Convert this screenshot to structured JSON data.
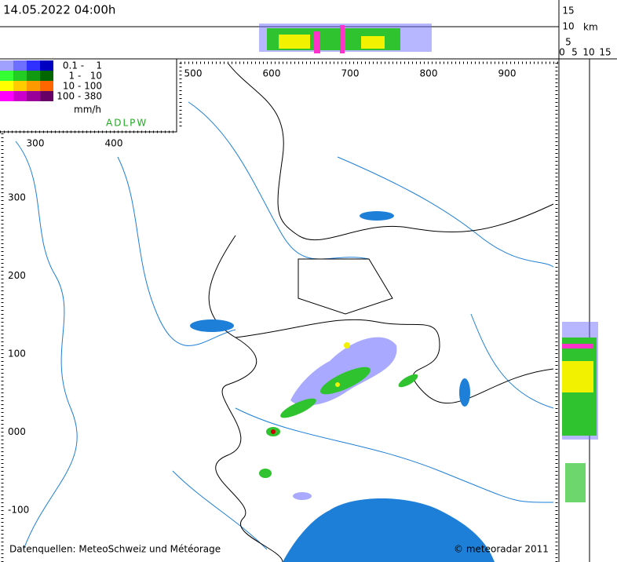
{
  "header": {
    "timestamp": "14.05.2022 04:00h",
    "height_ticks": [
      "15",
      "10",
      "5"
    ],
    "height_unit": "km",
    "side_ticks": [
      "0",
      "5",
      "10",
      "15"
    ]
  },
  "legend": {
    "rows": [
      "0.1 -    1",
      "1 -   10",
      "10 - 100",
      "100 - 380"
    ],
    "unit": "mm/h",
    "sensors": "ADLPW"
  },
  "map": {
    "x_labels": [
      "500",
      "600",
      "700",
      "800",
      "900"
    ],
    "inset_x_labels": [
      "300",
      "400"
    ],
    "y_labels": [
      "300",
      "200",
      "100",
      "000",
      "-100"
    ]
  },
  "footer": {
    "sources": "Datenquellen: MeteoSchweiz und Météorage",
    "copyright": "© meteoradar 2011"
  }
}
